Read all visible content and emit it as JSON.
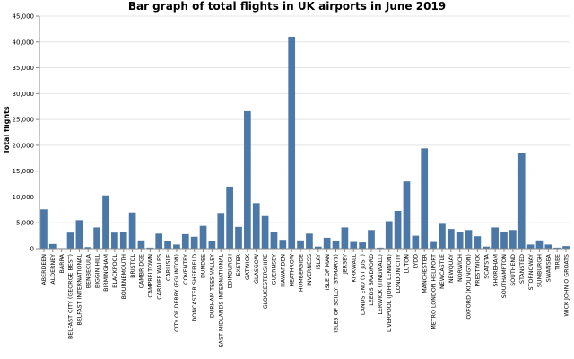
{
  "chart_data": {
    "type": "bar",
    "title": "Bar graph of total flights in UK airports in June 2019",
    "xlabel": "",
    "ylabel": "Total flights",
    "ylim": [
      0,
      45000
    ],
    "yticks": [
      0,
      5000,
      10000,
      15000,
      20000,
      25000,
      30000,
      35000,
      40000,
      45000
    ],
    "ytick_labels": [
      "0",
      "5,000",
      "10,000",
      "15,000",
      "20,000",
      "25,000",
      "30,000",
      "35,000",
      "40,000",
      "45,000"
    ],
    "grid": true,
    "bar_color": "#4c78a8",
    "categories": [
      "ABERDEEN",
      "ALDERNEY",
      "BARRA",
      "BELFAST CITY (GEORGE BEST)",
      "BELFAST INTERNATIONAL",
      "BENBECULA",
      "BIGGIN HILL",
      "BIRMINGHAM",
      "BLACKPOOL",
      "BOURNEMOUTH",
      "BRISTOL",
      "CAMBRIDGE",
      "CAMPBELTOWN",
      "CARDIFF WALES",
      "CARLISLE",
      "CITY OF DERRY (EGLINTON)",
      "COVENTRY",
      "DONCASTER SHEFFIELD",
      "DUNDEE",
      "DURHAM TEES VALLEY",
      "EAST MIDLANDS INTERNATIONAL",
      "EDINBURGH",
      "EXETER",
      "GATWICK",
      "GLASGOW",
      "GLOUCESTERSHIRE",
      "GUERNSEY",
      "HAWARDEN",
      "HEATHROW",
      "HUMBERSIDE",
      "INVERNESS",
      "ISLAY",
      "ISLE OF MAN",
      "ISLES OF SCILLY (ST.MARYS)",
      "JERSEY",
      "KIRKWALL",
      "LANDS END (ST JUST)",
      "LEEDS BRADFORD",
      "LERWICK (TINGWALL)",
      "LIVERPOOL (JOHN LENNON)",
      "LONDON CITY",
      "LUTON",
      "LYDD",
      "MANCHESTER",
      "METRO LONDON HELIPORT",
      "NEWCASTLE",
      "NEWQUAY",
      "NORWICH",
      "OXFORD (KIDLINGTON)",
      "PRESTWICK",
      "SCATSTA",
      "SHOREHAM",
      "SOUTHAMPTON",
      "SOUTHEND",
      "STANSTED",
      "STORNOWAY",
      "SUMBURGH",
      "SWANSEA",
      "TIREE",
      "WICK JOHN O GROATS"
    ],
    "values": [
      7600,
      900,
      100,
      3100,
      5500,
      300,
      4100,
      10300,
      3100,
      3200,
      7000,
      1600,
      200,
      2900,
      1500,
      800,
      2800,
      2300,
      4400,
      1500,
      6900,
      12000,
      4200,
      26600,
      8800,
      6300,
      3300,
      1700,
      41000,
      1600,
      2900,
      400,
      2100,
      1400,
      4100,
      1300,
      1200,
      3600,
      200,
      5300,
      7300,
      13000,
      2500,
      19400,
      1300,
      4800,
      3800,
      3300,
      3600,
      2400,
      400,
      4100,
      3300,
      3600,
      18500,
      800,
      1600,
      800,
      200,
      500
    ]
  }
}
